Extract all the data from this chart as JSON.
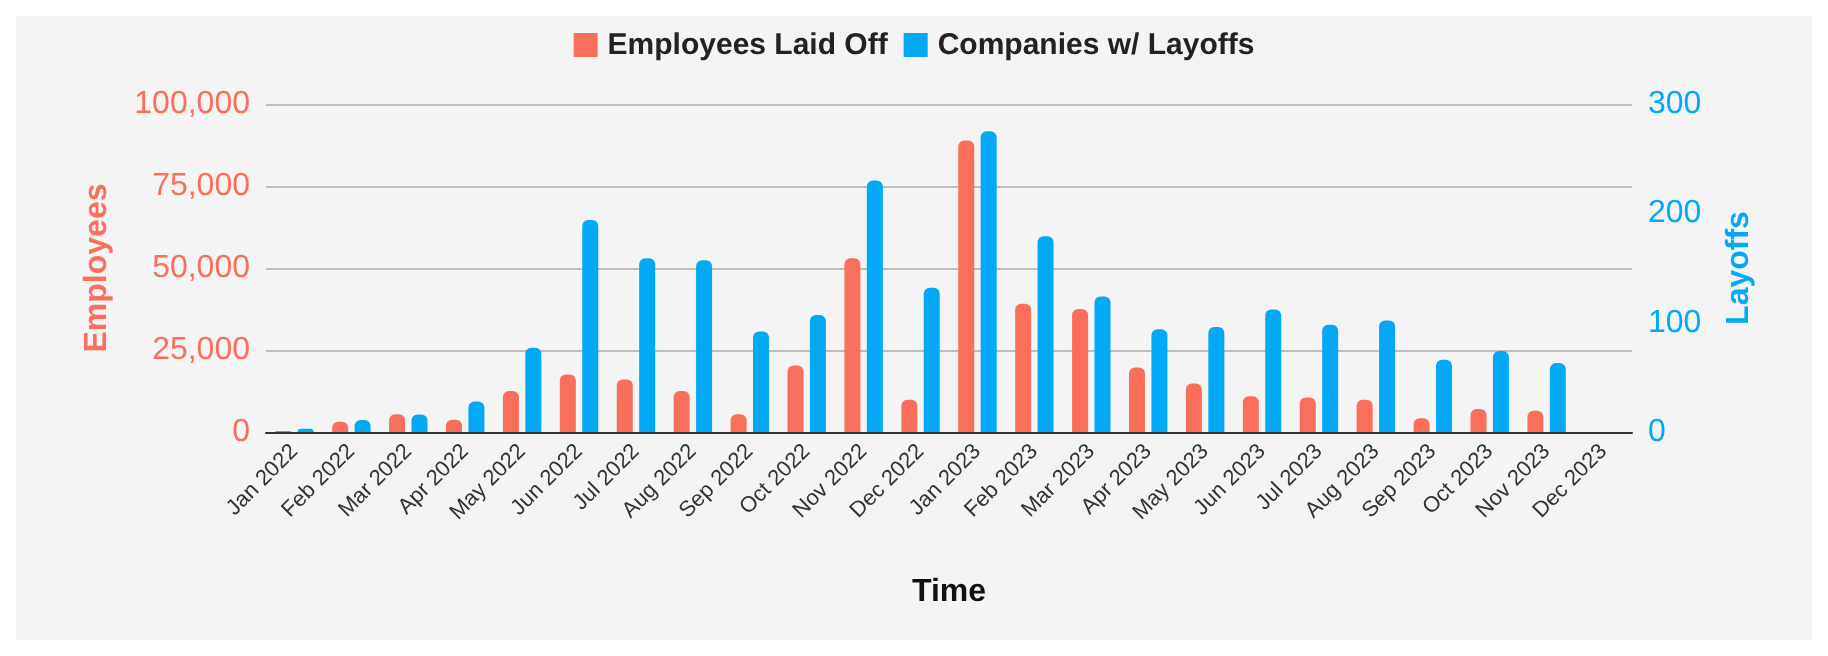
{
  "chart_data": {
    "type": "bar",
    "xlabel": "Time",
    "ylabel": "Employees",
    "y2label": "Layoffs",
    "categories": [
      "Jan 2022",
      "Feb 2022",
      "Mar 2022",
      "Apr 2022",
      "May 2022",
      "Jun 2022",
      "Jul 2022",
      "Aug 2022",
      "Sep 2022",
      "Oct 2022",
      "Nov 2022",
      "Dec 2022",
      "Jan 2023",
      "Feb 2023",
      "Mar 2023",
      "Apr 2023",
      "May 2023",
      "Jun 2023",
      "Jul 2023",
      "Aug 2023",
      "Sep 2023",
      "Oct 2023",
      "Nov 2023",
      "Dec 2023"
    ],
    "series": [
      {
        "name": "Employees Laid Off",
        "color": "#fa6e5c",
        "values": [
          300,
          3100,
          5400,
          3700,
          12500,
          17500,
          16000,
          12500,
          5400,
          20300,
          53000,
          9800,
          88900,
          39100,
          37500,
          19700,
          14800,
          10900,
          10500,
          9800,
          4200,
          7000,
          6500,
          0
        ]
      },
      {
        "name": "Companies w/ Layoffs",
        "color": "#03a9f4",
        "axis": "y2",
        "values": [
          3,
          11,
          16,
          28,
          77,
          194,
          159,
          157,
          92,
          107,
          230,
          132,
          275,
          179,
          124,
          94,
          96,
          112,
          98,
          102,
          66,
          74,
          63,
          0
        ]
      }
    ],
    "ylim": [
      0,
      100000
    ],
    "yticks": [
      {
        "value": 0,
        "label": "0"
      },
      {
        "value": 25000,
        "label": "25,000"
      },
      {
        "value": 50000,
        "label": "50,000"
      },
      {
        "value": 75000,
        "label": "75,000"
      },
      {
        "value": 100000,
        "label": "100,000"
      }
    ],
    "y2lim": [
      0,
      300
    ],
    "y2ticks": [
      0,
      100,
      200,
      300
    ],
    "grid": "y",
    "legend": "top"
  }
}
